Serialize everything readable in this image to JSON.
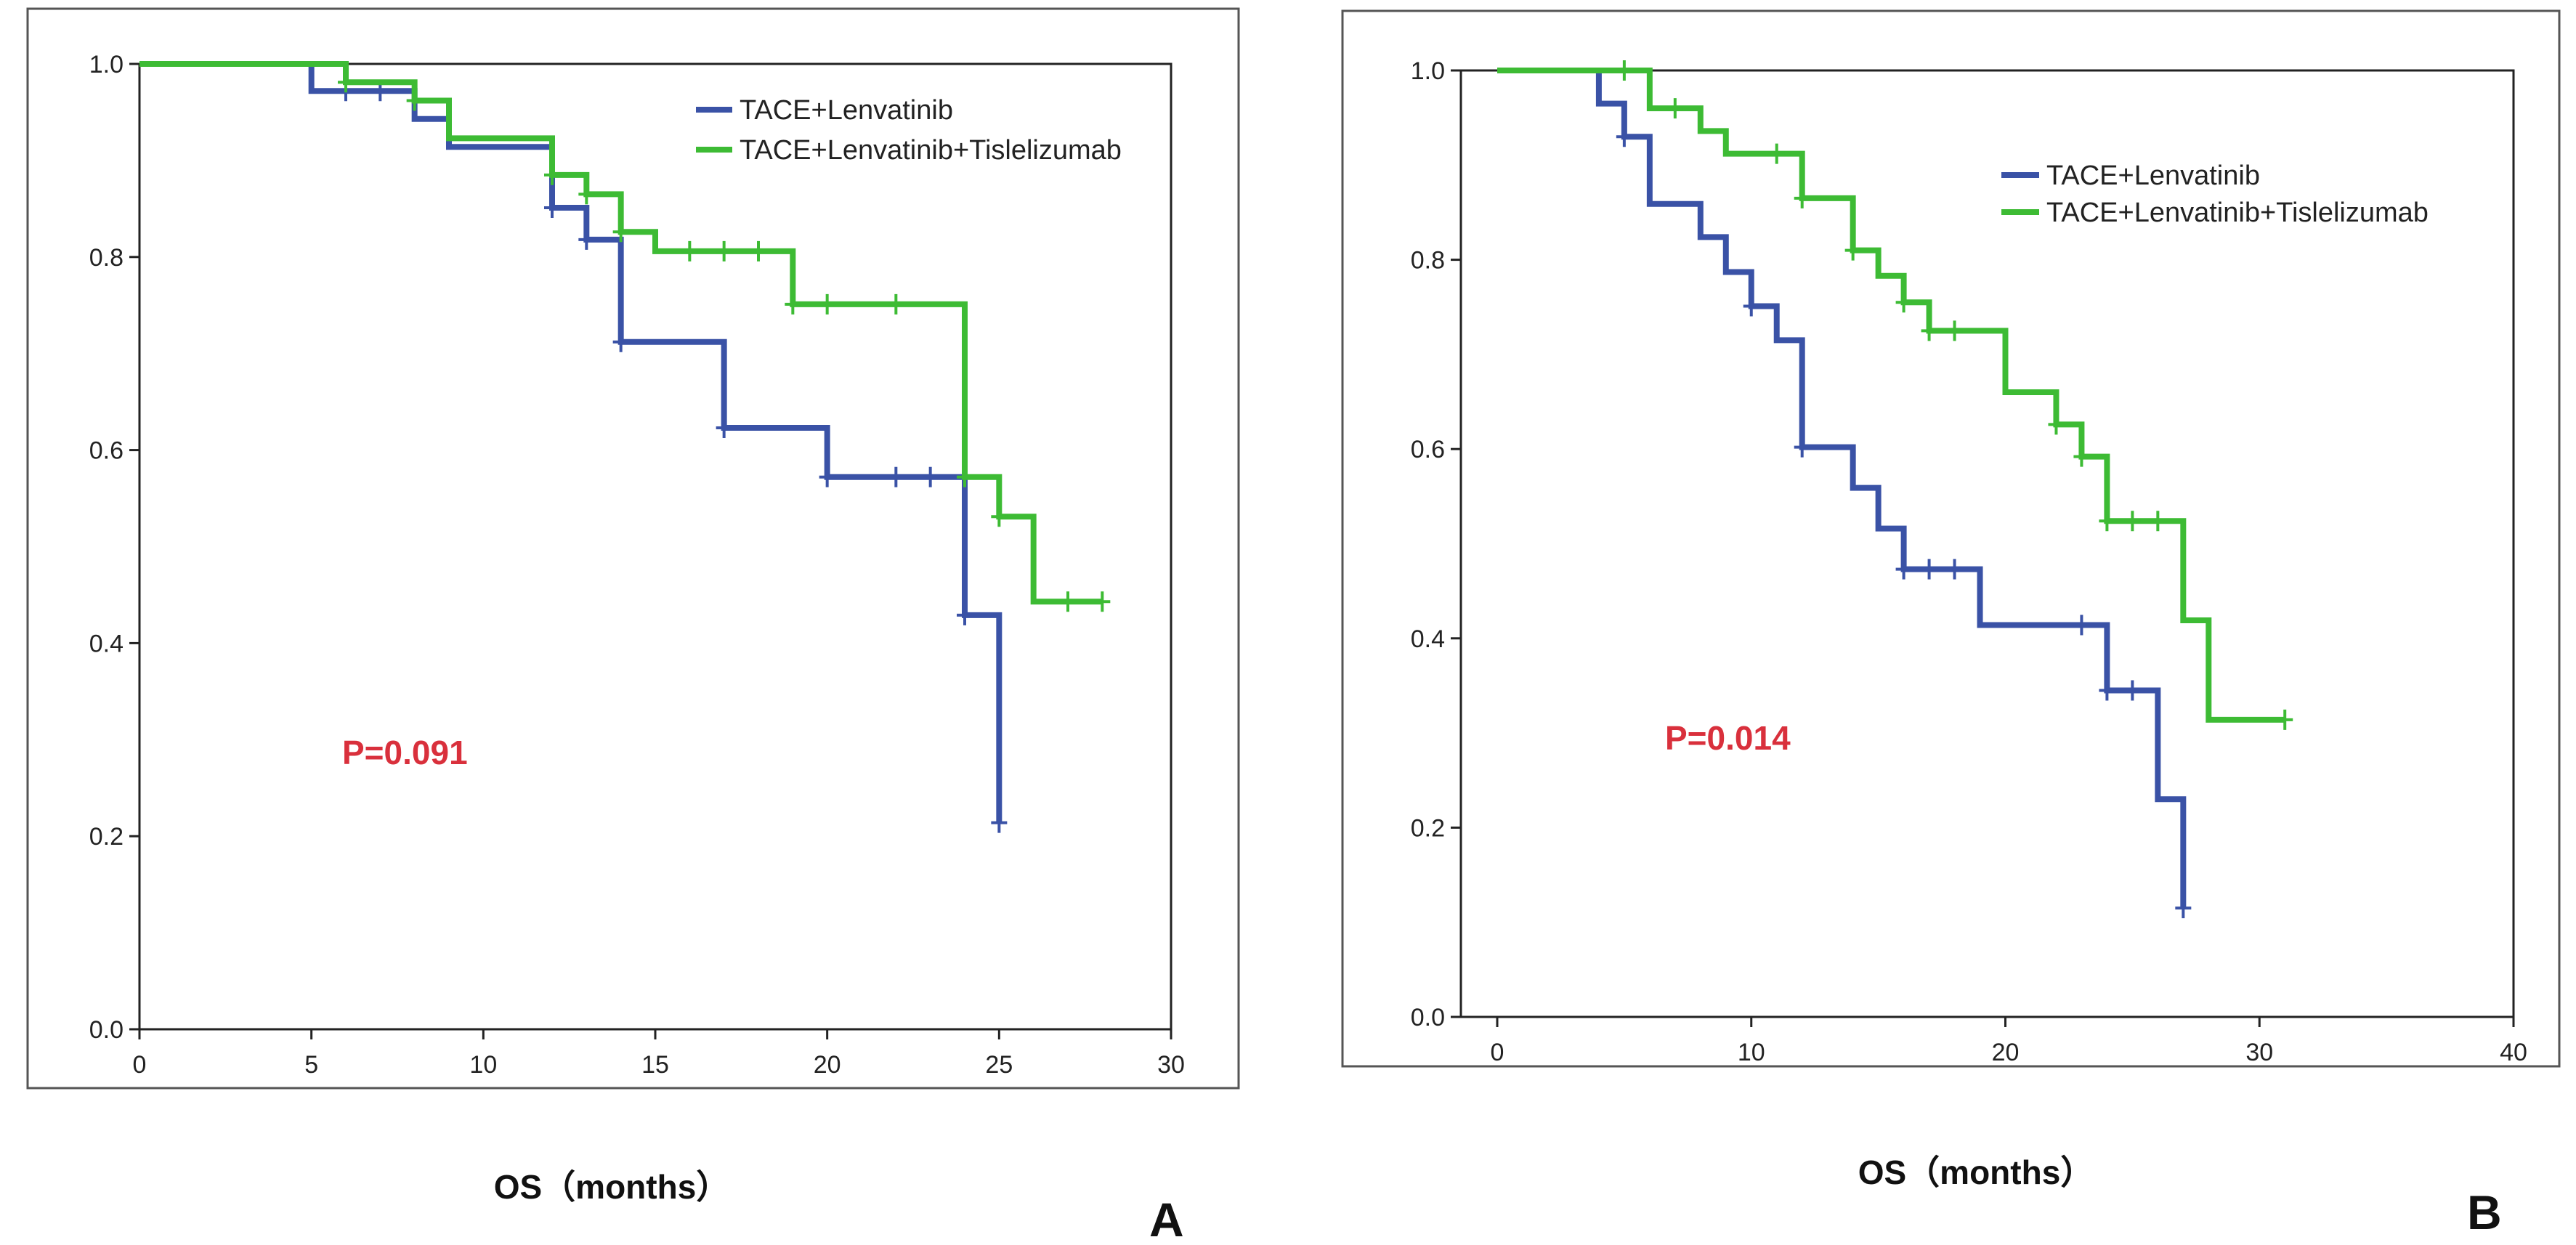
{
  "colors": {
    "lenvatinib": "#3a52a6",
    "tislelizumab": "#3dbb34",
    "pvalue": "#d9303c",
    "axis": "#222222"
  },
  "chart_data": [
    {
      "type": "line",
      "subtype": "kaplan-meier step",
      "panel_label": "A",
      "xlabel": "OS（months）",
      "ylabel": "",
      "xlim": [
        0,
        30
      ],
      "ylim": [
        0,
        1
      ],
      "x_ticks": [
        "0",
        "5",
        "10",
        "15",
        "20",
        "25",
        "30"
      ],
      "y_ticks": [
        "0.0",
        "0.2",
        "0.4",
        "0.6",
        "0.8",
        "1.0"
      ],
      "annotation": "P=0.091",
      "legend": [
        "TACE+Lenvatinib",
        "TACE+Lenvatinib+Tislelizumab"
      ],
      "series": [
        {
          "name": "TACE+Lenvatinib",
          "steps": [
            [
              0,
              1.0
            ],
            [
              5,
              0.972
            ],
            [
              8,
              0.943
            ],
            [
              9,
              0.914
            ],
            [
              12,
              0.851
            ],
            [
              13,
              0.818
            ],
            [
              14,
              0.712
            ],
            [
              17,
              0.623
            ],
            [
              20,
              0.572
            ],
            [
              24,
              0.429
            ],
            [
              25,
              0.214
            ]
          ],
          "censored": [
            [
              6,
              0.972
            ],
            [
              7,
              0.972
            ],
            [
              12,
              0.851
            ],
            [
              13,
              0.818
            ],
            [
              14,
              0.712
            ],
            [
              17,
              0.623
            ],
            [
              20,
              0.572
            ],
            [
              22,
              0.572
            ],
            [
              23,
              0.572
            ],
            [
              24,
              0.429
            ],
            [
              25,
              0.214
            ]
          ]
        },
        {
          "name": "TACE+Lenvatinib+Tislelizumab",
          "steps": [
            [
              0,
              1.0
            ],
            [
              6,
              0.981
            ],
            [
              8,
              0.962
            ],
            [
              9,
              0.923
            ],
            [
              12,
              0.885
            ],
            [
              13,
              0.865
            ],
            [
              14,
              0.826
            ],
            [
              15,
              0.806
            ],
            [
              19,
              0.751
            ],
            [
              24,
              0.572
            ],
            [
              25,
              0.531
            ],
            [
              26,
              0.443
            ],
            [
              28,
              0.443
            ]
          ],
          "censored": [
            [
              6,
              0.981
            ],
            [
              8,
              0.962
            ],
            [
              12,
              0.885
            ],
            [
              13,
              0.865
            ],
            [
              14,
              0.826
            ],
            [
              16,
              0.806
            ],
            [
              17,
              0.806
            ],
            [
              18,
              0.806
            ],
            [
              19,
              0.751
            ],
            [
              20,
              0.751
            ],
            [
              22,
              0.751
            ],
            [
              24,
              0.572
            ],
            [
              25,
              0.531
            ],
            [
              27,
              0.443
            ],
            [
              28,
              0.443
            ]
          ]
        }
      ]
    },
    {
      "type": "line",
      "subtype": "kaplan-meier step",
      "panel_label": "B",
      "xlabel": "OS（months）",
      "ylabel": "",
      "xlim": [
        0,
        40
      ],
      "ylim": [
        0,
        1
      ],
      "x_ticks": [
        "0",
        "10",
        "20",
        "30",
        "40"
      ],
      "y_ticks": [
        "0.0",
        "0.2",
        "0.4",
        "0.6",
        "0.8",
        "1.0"
      ],
      "annotation": "P=0.014",
      "legend": [
        "TACE+Lenvatinib",
        "TACE+Lenvatinib+Tislelizumab"
      ],
      "series": [
        {
          "name": "TACE+Lenvatinib",
          "steps": [
            [
              0,
              1.0
            ],
            [
              4,
              0.965
            ],
            [
              5,
              0.93
            ],
            [
              6,
              0.859
            ],
            [
              8,
              0.824
            ],
            [
              9,
              0.787
            ],
            [
              10,
              0.751
            ],
            [
              11,
              0.715
            ],
            [
              12,
              0.602
            ],
            [
              14,
              0.559
            ],
            [
              15,
              0.516
            ],
            [
              16,
              0.473
            ],
            [
              19,
              0.414
            ],
            [
              24,
              0.345
            ],
            [
              26,
              0.23
            ],
            [
              27,
              0.115
            ]
          ],
          "censored": [
            [
              5,
              0.93
            ],
            [
              10,
              0.751
            ],
            [
              12,
              0.602
            ],
            [
              16,
              0.473
            ],
            [
              17,
              0.473
            ],
            [
              18,
              0.473
            ],
            [
              23,
              0.414
            ],
            [
              24,
              0.345
            ],
            [
              25,
              0.345
            ],
            [
              27,
              0.115
            ]
          ]
        },
        {
          "name": "TACE+Lenvatinib+Tislelizumab",
          "steps": [
            [
              0,
              1.0
            ],
            [
              6,
              0.96
            ],
            [
              8,
              0.936
            ],
            [
              9,
              0.912
            ],
            [
              12,
              0.865
            ],
            [
              14,
              0.81
            ],
            [
              15,
              0.783
            ],
            [
              16,
              0.755
            ],
            [
              17,
              0.725
            ],
            [
              20,
              0.66
            ],
            [
              22,
              0.626
            ],
            [
              23,
              0.592
            ],
            [
              24,
              0.524
            ],
            [
              27,
              0.419
            ],
            [
              28,
              0.314
            ],
            [
              31,
              0.314
            ]
          ],
          "censored": [
            [
              5,
              1.0
            ],
            [
              7,
              0.96
            ],
            [
              11,
              0.912
            ],
            [
              12,
              0.865
            ],
            [
              14,
              0.81
            ],
            [
              16,
              0.755
            ],
            [
              17,
              0.725
            ],
            [
              18,
              0.725
            ],
            [
              22,
              0.626
            ],
            [
              23,
              0.592
            ],
            [
              24,
              0.524
            ],
            [
              25,
              0.524
            ],
            [
              26,
              0.524
            ],
            [
              31,
              0.314
            ]
          ]
        }
      ]
    }
  ]
}
